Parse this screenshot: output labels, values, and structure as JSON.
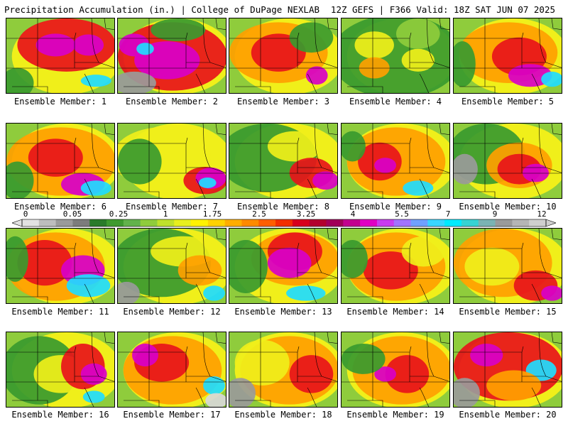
{
  "header": {
    "title": "Precipitation Accumulation (in.) | College of DuPage NEXLAB",
    "run_info": "12Z GEFS | F366 Valid: 18Z SAT JUN 07 2025"
  },
  "colorbar": {
    "tick_labels": [
      "0",
      "0.05",
      "0.25",
      "1",
      "1.75",
      "2.5",
      "3.25",
      "4",
      "5.5",
      "7",
      "9",
      "12"
    ],
    "colors": [
      "#e2e2e2",
      "#bdbdbd",
      "#9a9a9a",
      "#7c7c7c",
      "#2a7b2a",
      "#3f9a2f",
      "#62b24b",
      "#8fcc3c",
      "#bfe02c",
      "#e8ef1e",
      "#fff200",
      "#ffd200",
      "#ffad00",
      "#ff8a00",
      "#ff5e00",
      "#f32e00",
      "#d8001c",
      "#b3002e",
      "#a10058",
      "#c2008f",
      "#e100c4",
      "#c83cf0",
      "#a273ff",
      "#6fa0ff",
      "#39d6ff",
      "#00eaff",
      "#36d3d3",
      "#7ab3b3",
      "#9a9a9a",
      "#b5b5b5",
      "#cfcfcf"
    ]
  },
  "panels": [
    {
      "label": "Ensemble Member: 1"
    },
    {
      "label": "Ensemble Member: 2"
    },
    {
      "label": "Ensemble Member: 3"
    },
    {
      "label": "Ensemble Member: 4"
    },
    {
      "label": "Ensemble Member: 5"
    },
    {
      "label": "Ensemble Member: 6"
    },
    {
      "label": "Ensemble Member: 7"
    },
    {
      "label": "Ensemble Member: 8"
    },
    {
      "label": "Ensemble Member: 9"
    },
    {
      "label": "Ensemble Member: 10"
    },
    {
      "label": "Ensemble Member: 11"
    },
    {
      "label": "Ensemble Member: 12"
    },
    {
      "label": "Ensemble Member: 13"
    },
    {
      "label": "Ensemble Member: 14"
    },
    {
      "label": "Ensemble Member: 15"
    },
    {
      "label": "Ensemble Member: 16"
    },
    {
      "label": "Ensemble Member: 17"
    },
    {
      "label": "Ensemble Member: 18"
    },
    {
      "label": "Ensemble Member: 19"
    },
    {
      "label": "Ensemble Member: 20"
    }
  ],
  "palette": {
    "green": "#3a9a2f",
    "lightgreen": "#8fcc3c",
    "yellow": "#f0ef1a",
    "orange": "#ffa000",
    "red": "#e8141a",
    "darkred": "#b3002e",
    "magenta": "#d800c8",
    "violet": "#b040ff",
    "cyan": "#20dcff",
    "gray": "#9a9a9a",
    "lightgray": "#d8d8d8",
    "border": "#000000"
  }
}
